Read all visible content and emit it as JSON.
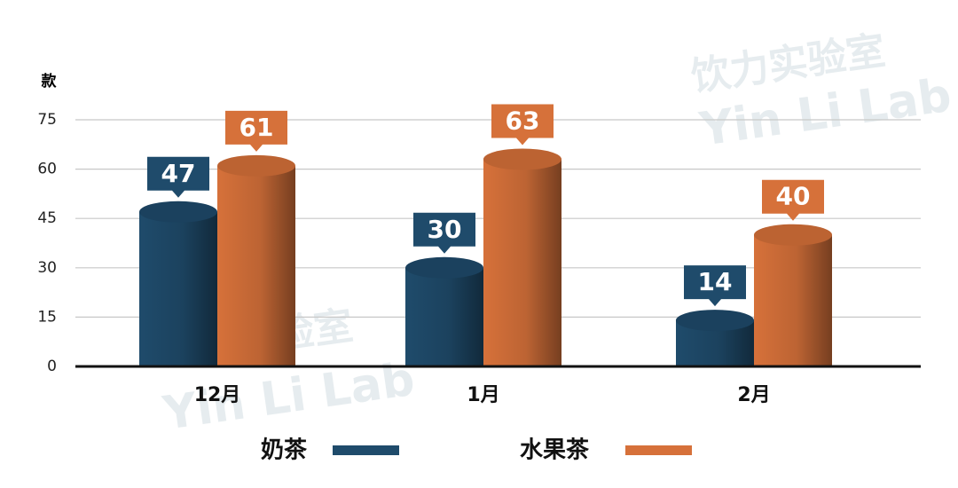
{
  "chart_data": {
    "type": "bar",
    "y_label": "款",
    "categories": [
      "12月",
      "1月",
      "2月"
    ],
    "series": [
      {
        "name": "奶茶",
        "color": "#1f4b6b",
        "values": [
          47,
          30,
          14
        ]
      },
      {
        "name": "水果茶",
        "color": "#d6713a",
        "values": [
          61,
          63,
          40
        ]
      }
    ],
    "ylim": [
      0,
      75
    ],
    "yticks": [
      0,
      15,
      30,
      45,
      60,
      75
    ],
    "grid": true,
    "watermark": {
      "cn": "饮力实验室",
      "en": "Yin Li Lab"
    }
  }
}
